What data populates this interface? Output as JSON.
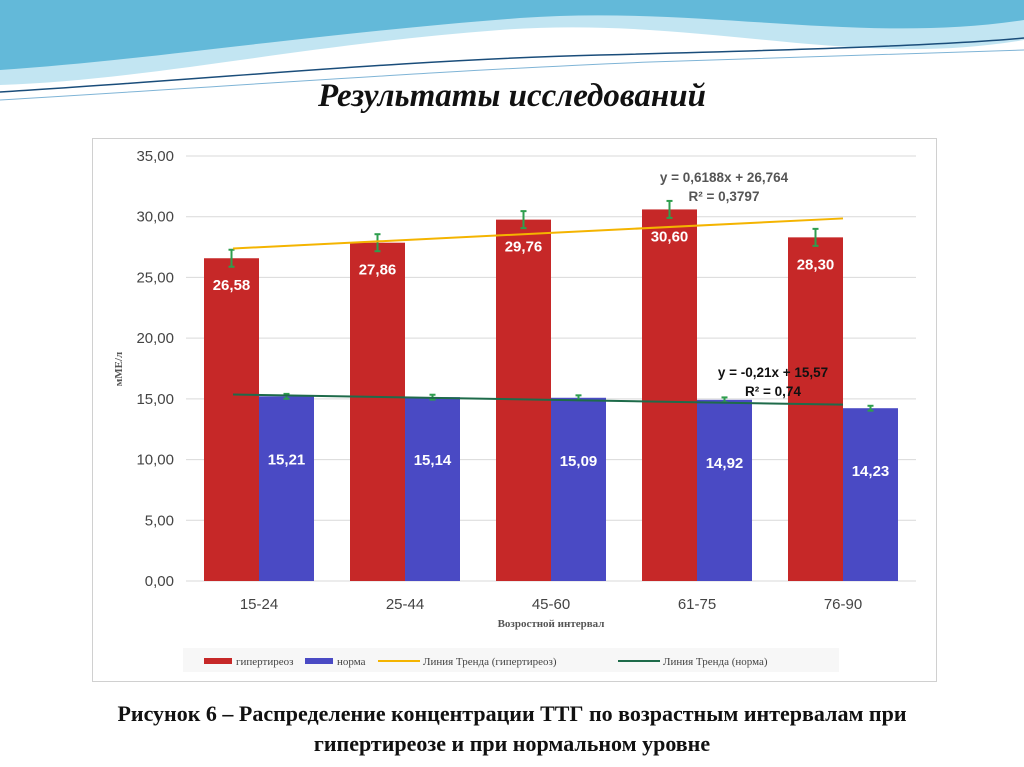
{
  "slide_title": "Результаты исследований",
  "caption_line1": "Рисунок 6 – Распределение концентрации ТТГ по возрастным интервалам при",
  "caption_line2": "гипертиреозе и при нормальном уровне",
  "chart_data": {
    "type": "bar",
    "categories": [
      "15-24",
      "25-44",
      "45-60",
      "61-75",
      "76-90"
    ],
    "series": [
      {
        "name": "гипертиреоз",
        "color": "#c62828",
        "values": [
          26.58,
          27.86,
          29.76,
          30.6,
          28.3
        ],
        "labels": [
          "26,58",
          "27,86",
          "29,76",
          "30,60",
          "28,30"
        ],
        "error": 0.7
      },
      {
        "name": "норма",
        "color": "#4a4ac4",
        "values": [
          15.21,
          15.14,
          15.09,
          14.92,
          14.23
        ],
        "labels": [
          "15,21",
          "15,14",
          "15,09",
          "14,92",
          "14,23"
        ],
        "error": 0.2
      }
    ],
    "trendlines": [
      {
        "name": "Линия Тренда (гипертиреоз)",
        "color": "#f4b400",
        "slope": 0.6188,
        "intercept": 26.764,
        "equation": "y = 0,6188x + 26,764",
        "r2": "R² = 0,3797"
      },
      {
        "name": "Линия Тренда (норма)",
        "color": "#1e6b4a",
        "slope": -0.21,
        "intercept": 15.57,
        "equation": "y = -0,21x + 15,57",
        "r2": "R² = 0,74"
      }
    ],
    "xlabel": "Возростной интервал",
    "ylabel": "мМЕ/л",
    "ylim": [
      0,
      35
    ],
    "yticks": [
      "0,00",
      "5,00",
      "10,00",
      "15,00",
      "20,00",
      "25,00",
      "30,00",
      "35,00"
    ],
    "grid": true,
    "legend_position": "bottom"
  }
}
